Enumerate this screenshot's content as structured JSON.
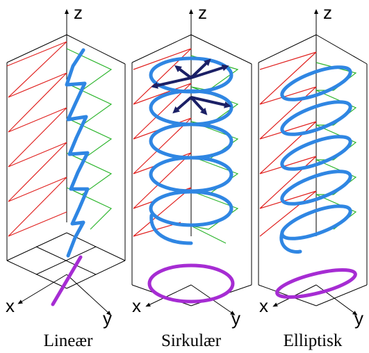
{
  "panels": [
    {
      "id": "linear",
      "caption": "Lineær",
      "axes": {
        "z": "z",
        "x": "x",
        "y": "y"
      }
    },
    {
      "id": "circular",
      "caption": "Sirkulær",
      "axes": {
        "z": "z",
        "x": "x",
        "y": "y"
      }
    },
    {
      "id": "elliptical",
      "caption": "Elliptisk",
      "axes": {
        "z": "z",
        "x": "x",
        "y": "y"
      }
    }
  ],
  "colors": {
    "x_component": "#e0201e",
    "y_component": "#2db52d",
    "field": "#2f86e3",
    "projection": "#a62cd3",
    "vectors": "#1b2066"
  }
}
